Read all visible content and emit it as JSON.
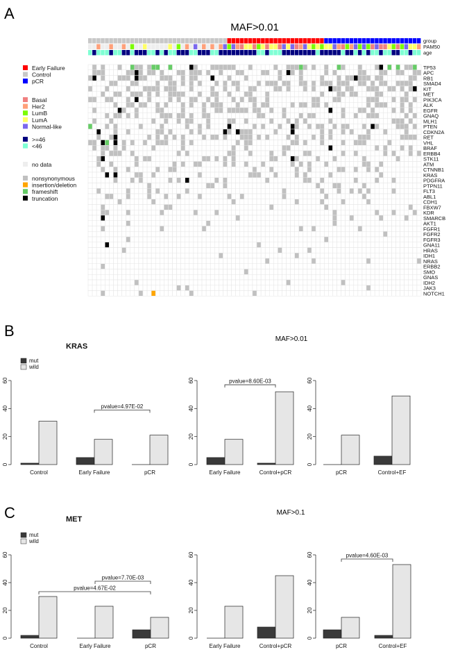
{
  "figure": {
    "panel_labels": [
      "A",
      "B",
      "C"
    ],
    "panel_a_title": "MAF>0.01",
    "panel_b_title": "MAF>0.01",
    "panel_c_title": "MAF>0.1"
  },
  "legend_a": {
    "groups": [
      {
        "items": [
          {
            "label": "Early Failure",
            "color": "#ff0000"
          },
          {
            "label": "Control",
            "color": "#c8c8c8"
          },
          {
            "label": "pCR",
            "color": "#0000ff"
          }
        ]
      },
      {
        "items": [
          {
            "label": "Basal",
            "color": "#f08080"
          },
          {
            "label": "Her2",
            "color": "#ffa07a"
          },
          {
            "label": "LumB",
            "color": "#7cfc00"
          },
          {
            "label": "LumA",
            "color": "#ffff66"
          },
          {
            "label": "Normal-like",
            "color": "#7b68ee"
          }
        ]
      },
      {
        "items": [
          {
            "label": ">=46",
            "color": "#00007f"
          },
          {
            "label": "<46",
            "color": "#7fffd4"
          }
        ]
      },
      {
        "items": [
          {
            "label": "no data",
            "color": "#eeeeee"
          }
        ]
      },
      {
        "items": [
          {
            "label": "nonsynonymous",
            "color": "#c0c0c0"
          },
          {
            "label": "insertion/deletion",
            "color": "#ffa500"
          },
          {
            "label": "frameshift",
            "color": "#66cc66"
          },
          {
            "label": "truncation",
            "color": "#000000"
          }
        ]
      }
    ]
  },
  "chart_data": [
    {
      "type": "heatmap",
      "panel": "A",
      "title": "MAF>0.01",
      "n_samples": 79,
      "annotation_rows": [
        "group",
        "PAM50",
        "age"
      ],
      "genes": [
        "TP53",
        "APC",
        "RB1",
        "SMAD4",
        "KIT",
        "MET",
        "PIK3CA",
        "ALK",
        "EGFR",
        "GNAQ",
        "MLH1",
        "PTEN",
        "CDKN2A",
        "RET",
        "VHL",
        "BRAF",
        "ERBB4",
        "STK11",
        "ATM",
        "CTNNB1",
        "KRAS",
        "PDGFRA",
        "PTPN11",
        "FLT3",
        "ABL1",
        "CDH1",
        "FBXW7",
        "KDR",
        "SMARCB",
        "AKT1",
        "FGFR1",
        "FGFR2",
        "FGFR3",
        "GNA11",
        "HRAS",
        "IDH1",
        "NRAS",
        "ERBB2",
        "SMO",
        "GNAS",
        "IDH2",
        "JAK3",
        "NOTCH1"
      ],
      "group_counts": {
        "Control": 33,
        "Early Failure": 23,
        "pCR": 23
      },
      "colors": {
        "nonsynonymous": "#c0c0c0",
        "indel": "#ffa500",
        "frameshift": "#66cc66",
        "truncation": "#000000",
        "empty": "#ffffff",
        "grid": "#e4e4e4"
      }
    },
    {
      "type": "bar",
      "panel": "B-1",
      "gene": "KRAS",
      "categories": [
        "Control",
        "Early Failure",
        "pCR"
      ],
      "series": [
        {
          "name": "mut",
          "values": [
            1,
            5,
            0
          ]
        },
        {
          "name": "wild",
          "values": [
            31,
            18,
            21
          ]
        }
      ],
      "ylim": [
        0,
        60
      ],
      "yticks": [
        0,
        20,
        40,
        60
      ],
      "brackets": [
        {
          "from": 1,
          "to": 2,
          "label": "pvalue=4.97E-02"
        }
      ]
    },
    {
      "type": "bar",
      "panel": "B-2",
      "categories": [
        "Early Failure",
        "Control+pCR"
      ],
      "series": [
        {
          "name": "mut",
          "values": [
            5,
            1
          ]
        },
        {
          "name": "wild",
          "values": [
            18,
            52
          ]
        }
      ],
      "ylim": [
        0,
        60
      ],
      "yticks": [
        0,
        20,
        40,
        60
      ],
      "brackets": [
        {
          "from": 0,
          "to": 1,
          "label": "pvalue=8.60E-03"
        }
      ]
    },
    {
      "type": "bar",
      "panel": "B-3",
      "categories": [
        "pCR",
        "Control+EF"
      ],
      "series": [
        {
          "name": "mut",
          "values": [
            0,
            6
          ]
        },
        {
          "name": "wild",
          "values": [
            21,
            49
          ]
        }
      ],
      "ylim": [
        0,
        60
      ],
      "yticks": [
        0,
        20,
        40,
        60
      ],
      "brackets": []
    },
    {
      "type": "bar",
      "panel": "C-1",
      "gene": "MET",
      "categories": [
        "Control",
        "Early Failure",
        "pCR"
      ],
      "series": [
        {
          "name": "mut",
          "values": [
            2,
            0,
            6
          ]
        },
        {
          "name": "wild",
          "values": [
            30,
            23,
            15
          ]
        }
      ],
      "ylim": [
        0,
        60
      ],
      "yticks": [
        0,
        20,
        40,
        60
      ],
      "brackets": [
        {
          "from": 1,
          "to": 2,
          "label": "pvalue=7.70E-03"
        },
        {
          "from": 0,
          "to": 2,
          "label": "pvalue=4.67E-02"
        }
      ]
    },
    {
      "type": "bar",
      "panel": "C-2",
      "categories": [
        "Early Failure",
        "Control+pCR"
      ],
      "series": [
        {
          "name": "mut",
          "values": [
            0,
            8
          ]
        },
        {
          "name": "wild",
          "values": [
            23,
            45
          ]
        }
      ],
      "ylim": [
        0,
        60
      ],
      "yticks": [
        0,
        20,
        40,
        60
      ],
      "brackets": []
    },
    {
      "type": "bar",
      "panel": "C-3",
      "categories": [
        "pCR",
        "Control+EF"
      ],
      "series": [
        {
          "name": "mut",
          "values": [
            6,
            2
          ]
        },
        {
          "name": "wild",
          "values": [
            15,
            53
          ]
        }
      ],
      "ylim": [
        0,
        60
      ],
      "yticks": [
        0,
        20,
        40,
        60
      ],
      "brackets": [
        {
          "from": 0,
          "to": 1,
          "label": "pvalue=4.60E-03"
        }
      ]
    }
  ],
  "bar_legend": [
    {
      "label": "mut",
      "color": "#3a3a3a"
    },
    {
      "label": "wild",
      "color": "#e6e6e6"
    }
  ],
  "bar_colors": {
    "mut": "#3a3a3a",
    "wild": "#e6e6e6",
    "stroke": "#222222"
  }
}
